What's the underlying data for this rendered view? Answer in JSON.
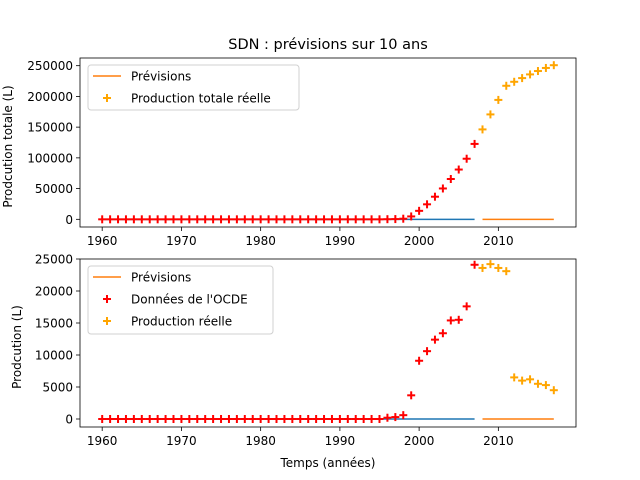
{
  "figure": {
    "title": "SDN : prévisions sur 10 ans",
    "xlabel": "Temps (années)"
  },
  "colors": {
    "axis": "#000000",
    "forecast_line": "#ff7f0e",
    "history_line": "#1f77b4",
    "ocde_points": "#ff0000",
    "real_points": "#ffa500"
  },
  "chart_data": [
    {
      "type": "scatter",
      "ylabel": "Prodcution totale (L)",
      "xlim": [
        1957.2,
        2019.8
      ],
      "ylim": [
        -12500,
        262500
      ],
      "xticks": [
        1960,
        1970,
        1980,
        1990,
        2000,
        2010
      ],
      "yticks": [
        0,
        50000,
        100000,
        150000,
        200000,
        250000
      ],
      "ytick_labels": [
        "0",
        "50000",
        "100000",
        "150000",
        "200000",
        "250000"
      ],
      "legend": {
        "position": "top-left",
        "entries": [
          "Prévisions",
          "Production totale réelle"
        ]
      },
      "lines": [
        {
          "name": "",
          "color": "#1f77b4",
          "x": [
            1960,
            2007
          ],
          "y": [
            0,
            0
          ]
        },
        {
          "name": "Prévisions",
          "color": "#ff7f0e",
          "x": [
            2008,
            2017
          ],
          "y": [
            0,
            0
          ]
        }
      ],
      "series": [
        {
          "name": "",
          "color": "#ff0000",
          "x": [
            1960,
            1961,
            1962,
            1963,
            1964,
            1965,
            1966,
            1967,
            1968,
            1969,
            1970,
            1971,
            1972,
            1973,
            1974,
            1975,
            1976,
            1977,
            1978,
            1979,
            1980,
            1981,
            1982,
            1983,
            1984,
            1985,
            1986,
            1987,
            1988,
            1989,
            1990,
            1991,
            1992,
            1993,
            1994,
            1995,
            1996,
            1997,
            1998,
            1999,
            2000,
            2001,
            2002,
            2003,
            2004,
            2005,
            2006,
            2007
          ],
          "y": [
            0,
            0,
            0,
            0,
            0,
            0,
            0,
            0,
            0,
            0,
            0,
            0,
            0,
            0,
            0,
            0,
            0,
            0,
            0,
            0,
            0,
            0,
            0,
            0,
            0,
            0,
            0,
            0,
            0,
            0,
            0,
            0,
            0,
            0,
            0,
            0,
            200,
            400,
            1000,
            4700,
            13800,
            24400,
            36800,
            50200,
            65600,
            81000,
            98600,
            122700
          ]
        },
        {
          "name": "Production totale réelle",
          "color": "#ffa500",
          "x": [
            2008,
            2009,
            2010,
            2011,
            2012,
            2013,
            2014,
            2015,
            2016,
            2017
          ],
          "y": [
            146300,
            170700,
            194300,
            217300,
            223800,
            229800,
            235800,
            241300,
            246300,
            250800
          ]
        }
      ]
    },
    {
      "type": "scatter",
      "ylabel": "Prodcution (L)",
      "xlim": [
        1957.2,
        2019.8
      ],
      "ylim": [
        -1250,
        25000
      ],
      "xticks": [
        1960,
        1970,
        1980,
        1990,
        2000,
        2010
      ],
      "yticks": [
        0,
        5000,
        10000,
        15000,
        20000,
        25000
      ],
      "ytick_labels": [
        "0",
        "5000",
        "10000",
        "15000",
        "20000",
        "25000"
      ],
      "legend": {
        "position": "top-left",
        "entries": [
          "Prévisions",
          "Données de l'OCDE",
          "Production réelle"
        ]
      },
      "lines": [
        {
          "name": "",
          "color": "#1f77b4",
          "x": [
            1960,
            2007
          ],
          "y": [
            0,
            0
          ]
        },
        {
          "name": "Prévisions",
          "color": "#ff7f0e",
          "x": [
            2008,
            2017
          ],
          "y": [
            0,
            0
          ]
        }
      ],
      "series": [
        {
          "name": "Données de l'OCDE",
          "color": "#ff0000",
          "x": [
            1960,
            1961,
            1962,
            1963,
            1964,
            1965,
            1966,
            1967,
            1968,
            1969,
            1970,
            1971,
            1972,
            1973,
            1974,
            1975,
            1976,
            1977,
            1978,
            1979,
            1980,
            1981,
            1982,
            1983,
            1984,
            1985,
            1986,
            1987,
            1988,
            1989,
            1990,
            1991,
            1992,
            1993,
            1994,
            1995,
            1996,
            1997,
            1998,
            1999,
            2000,
            2001,
            2002,
            2003,
            2004,
            2005,
            2006,
            2007
          ],
          "y": [
            0,
            0,
            0,
            0,
            0,
            0,
            0,
            0,
            0,
            0,
            0,
            0,
            0,
            0,
            0,
            0,
            0,
            0,
            0,
            0,
            0,
            0,
            0,
            0,
            0,
            0,
            0,
            0,
            0,
            0,
            0,
            0,
            0,
            0,
            0,
            0,
            200,
            300,
            600,
            3700,
            9100,
            10600,
            12400,
            13400,
            15400,
            15500,
            17600,
            24100
          ]
        },
        {
          "name": "Production réelle",
          "color": "#ffa500",
          "x": [
            2008,
            2009,
            2010,
            2011,
            2012,
            2013,
            2014,
            2015,
            2016,
            2017
          ],
          "y": [
            23600,
            24200,
            23600,
            23100,
            6500,
            6000,
            6200,
            5500,
            5300,
            4500
          ]
        }
      ]
    }
  ]
}
